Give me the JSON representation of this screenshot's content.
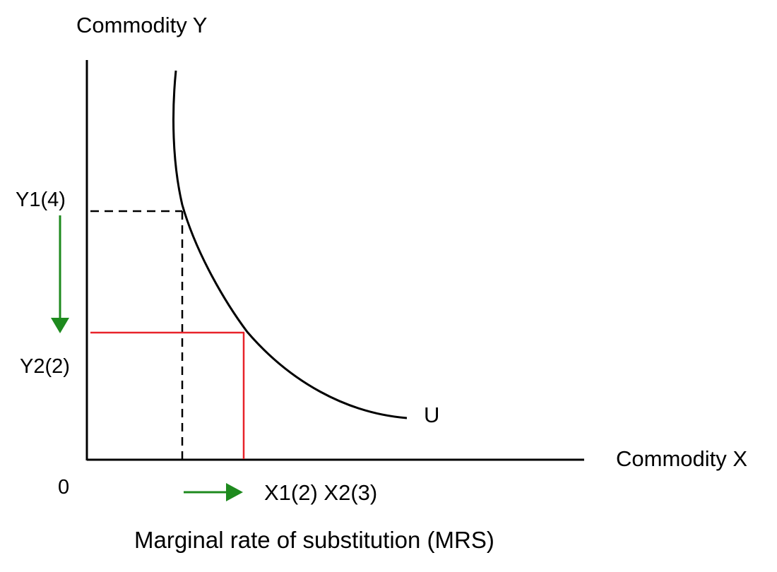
{
  "labels": {
    "y_axis": "Commodity Y",
    "x_axis": "Commodity X",
    "origin": "0",
    "y1": "Y1(4)",
    "y2": "Y2(2)",
    "x_points": "X1(2) X2(3)",
    "curve": "U",
    "caption": "Marginal rate of substitution (MRS)"
  },
  "colors": {
    "axis": "#000000",
    "curve": "#000000",
    "guide_y1": "#000000",
    "guide_y2": "#e8232a",
    "arrow": "#1e8a1e"
  }
}
